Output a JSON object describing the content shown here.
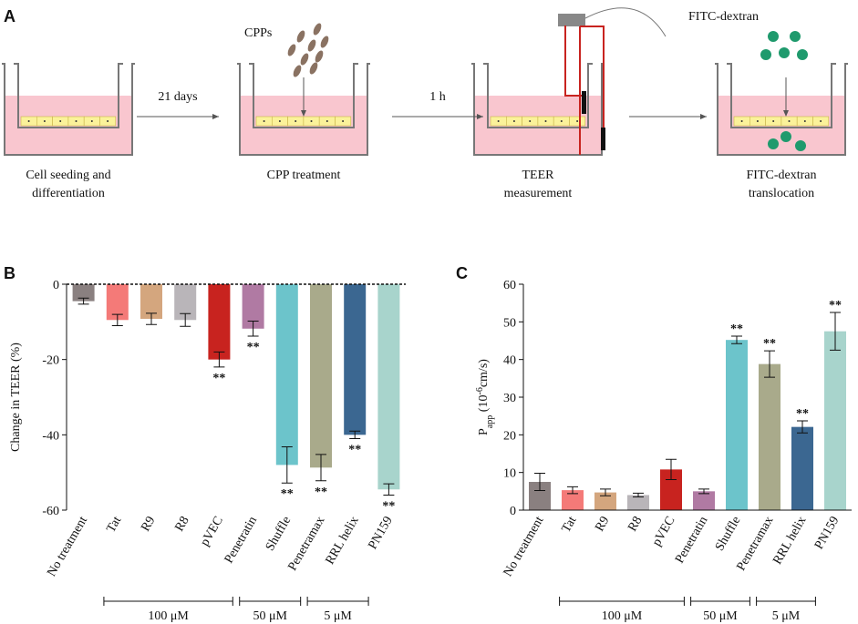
{
  "panel_a": {
    "letter": "A",
    "cpps": "CPPs",
    "fitc": "FITC-dextran",
    "arrows": [
      "21 days",
      "1 h"
    ],
    "steps": [
      [
        "Cell seeding and",
        "differentiation"
      ],
      [
        "CPP treatment"
      ],
      [
        "TEER",
        "measurement"
      ],
      [
        "FITC-dextran",
        "translocation"
      ]
    ]
  },
  "chart_data": [
    {
      "type": "bar",
      "letter": "B",
      "ylabel": "Change in TEER (%)",
      "categories": [
        "No treatment",
        "Tat",
        "R9",
        "R8",
        "pVEC",
        "Penetratin",
        "Shuffle",
        "Penetramax",
        "RRL helix",
        "PN159"
      ],
      "values": [
        -4.5,
        -9.5,
        -9.2,
        -9.5,
        -20,
        -11.8,
        -48,
        -48.7,
        -40,
        -54.5
      ],
      "errors": [
        0.8,
        1.5,
        1.5,
        1.7,
        2,
        2,
        4.8,
        3.5,
        1,
        1.5
      ],
      "colors": [
        "#8a8080",
        "#f47a78",
        "#d4a67e",
        "#b9b5b9",
        "#c8231f",
        "#b07aa3",
        "#6cc4cb",
        "#a9aa8b",
        "#3b6791",
        "#a8d4cc"
      ],
      "significance": [
        null,
        null,
        null,
        null,
        "**",
        "**",
        "**",
        "**",
        "**",
        "**"
      ],
      "ylim": [
        -60,
        0
      ],
      "yticks": [
        -60,
        -40,
        -20,
        0
      ],
      "groups": [
        "100 μM",
        "50 μM",
        "5 μM"
      ]
    },
    {
      "type": "bar",
      "letter": "C",
      "ylabel": {
        "main": "P",
        "sub": "app",
        "pre": " (10",
        "sup": "-6",
        "post": "cm/s)"
      },
      "categories": [
        "No treatment",
        "Tat",
        "R9",
        "R8",
        "pVEC",
        "Penetratin",
        "Shuffle",
        "Penetramax",
        "RRL helix",
        "PN159"
      ],
      "values": [
        7.5,
        5.3,
        4.7,
        4.0,
        10.8,
        5.0,
        45.2,
        38.8,
        22.1,
        47.5
      ],
      "errors": [
        2.3,
        0.9,
        0.9,
        0.5,
        2.7,
        0.6,
        1,
        3.5,
        1.6,
        5
      ],
      "colors": [
        "#8a8080",
        "#f47a78",
        "#d4a67e",
        "#b9b5b9",
        "#c8231f",
        "#b07aa3",
        "#6cc4cb",
        "#a9aa8b",
        "#3b6791",
        "#a8d4cc"
      ],
      "significance": [
        null,
        null,
        null,
        null,
        null,
        null,
        "**",
        "**",
        "**",
        "**"
      ],
      "ylim": [
        0,
        60
      ],
      "yticks": [
        0,
        10,
        20,
        30,
        40,
        50,
        60
      ],
      "groups": [
        "100 μM",
        "50 μM",
        "5 μM"
      ]
    }
  ]
}
